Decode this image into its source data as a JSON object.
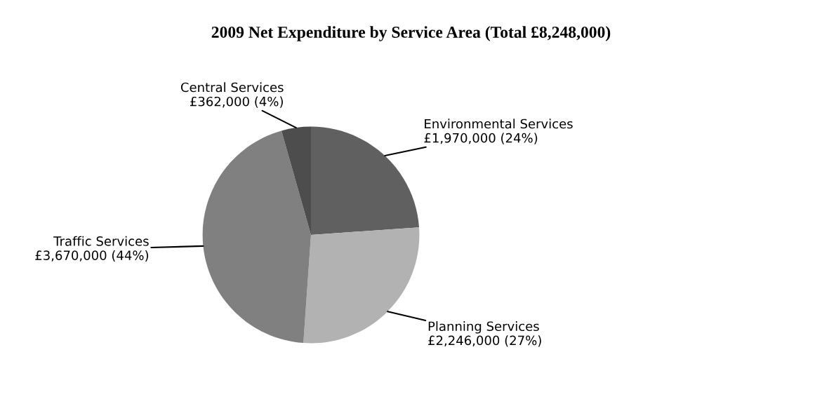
{
  "chart_data": {
    "type": "pie",
    "title": "2009 Net Expenditure by Service Area (Total £8,248,000)",
    "categories": [
      "Environmental Services",
      "Planning Services",
      "Traffic Services",
      "Central Services"
    ],
    "values": [
      1970000,
      2246000,
      3670000,
      362000
    ],
    "colors": [
      "#606060",
      "#b2b2b2",
      "#808080",
      "#4d4d4d"
    ],
    "value_labels": [
      "£1,970,000 (24%)",
      "£2,246,000 (27%)",
      "£3,670,000 (44%)",
      "£362,000 (4%)"
    ]
  }
}
